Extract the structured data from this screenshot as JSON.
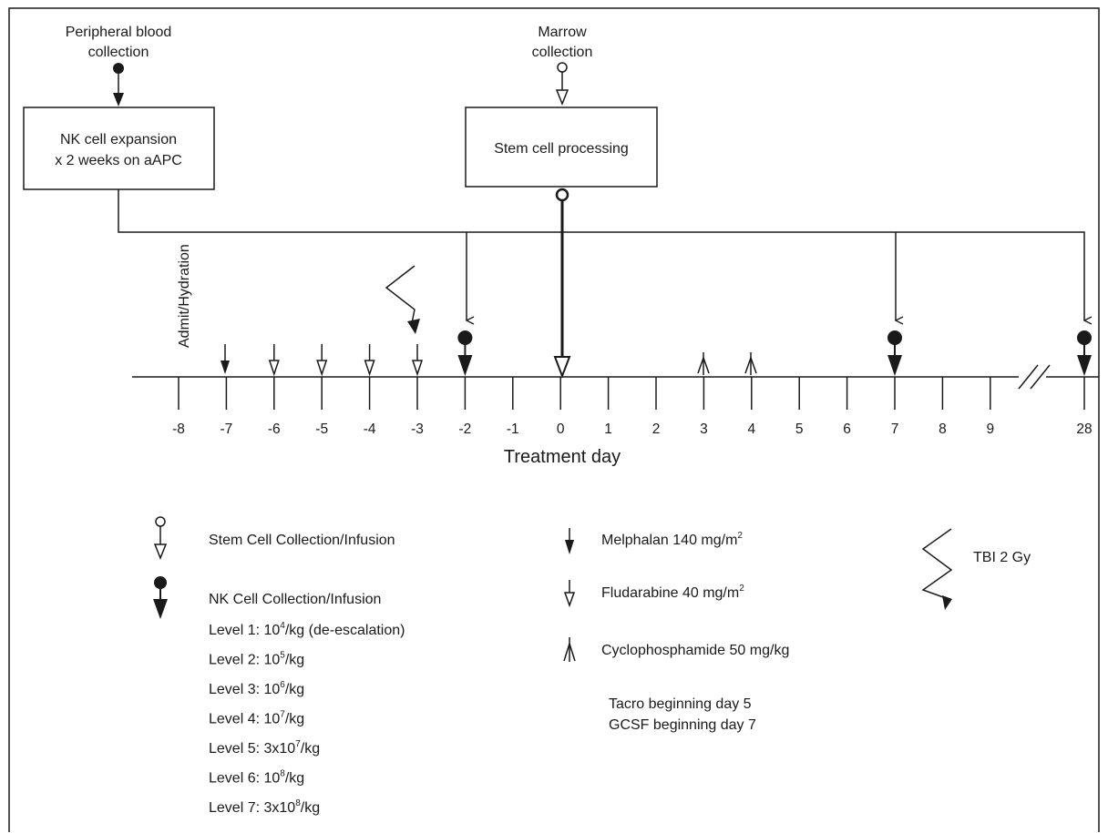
{
  "top": {
    "peripheral_line1": "Peripheral blood",
    "peripheral_line2": "collection",
    "marrow_line1": "Marrow",
    "marrow_line2": "collection",
    "nk_box_line1": "NK cell expansion",
    "nk_box_line2": "x 2 weeks on aAPC",
    "stem_box": "Stem cell processing"
  },
  "timeline": {
    "admit_label": "Admit/Hydration",
    "xlabel": "Treatment day",
    "days": [
      "-8",
      "-7",
      "-6",
      "-5",
      "-4",
      "-3",
      "-2",
      "-1",
      "0",
      "1",
      "2",
      "3",
      "4",
      "5",
      "6",
      "7",
      "8",
      "9",
      "28"
    ]
  },
  "legend": {
    "stem_cell": "Stem Cell Collection/Infusion",
    "nk_cell": "NK Cell Collection/Infusion",
    "levels": [
      {
        "pre": "Level 1: 10",
        "sup": "4",
        "post": "/kg (de-escalation)"
      },
      {
        "pre": "Level 2: 10",
        "sup": "5",
        "post": "/kg"
      },
      {
        "pre": "Level 3: 10",
        "sup": "6",
        "post": "/kg"
      },
      {
        "pre": "Level 4: 10",
        "sup": "7",
        "post": "/kg"
      },
      {
        "pre": "Level 5: 3x10",
        "sup": "7",
        "post": "/kg"
      },
      {
        "pre": "Level 6: 10",
        "sup": "8",
        "post": "/kg"
      },
      {
        "pre": "Level 7: 3x10",
        "sup": "8",
        "post": "/kg"
      }
    ],
    "melphalan": {
      "pre": "Melphalan 140 mg/m",
      "sup": "2"
    },
    "fludarabine": {
      "pre": "Fludarabine 40 mg/m",
      "sup": "2"
    },
    "cyclophosphamide": "Cyclophosphamide 50 mg/kg",
    "tacro": "Tacro beginning day 5",
    "gcsf": "GCSF beginning day 7",
    "tbi": "TBI 2 Gy"
  }
}
